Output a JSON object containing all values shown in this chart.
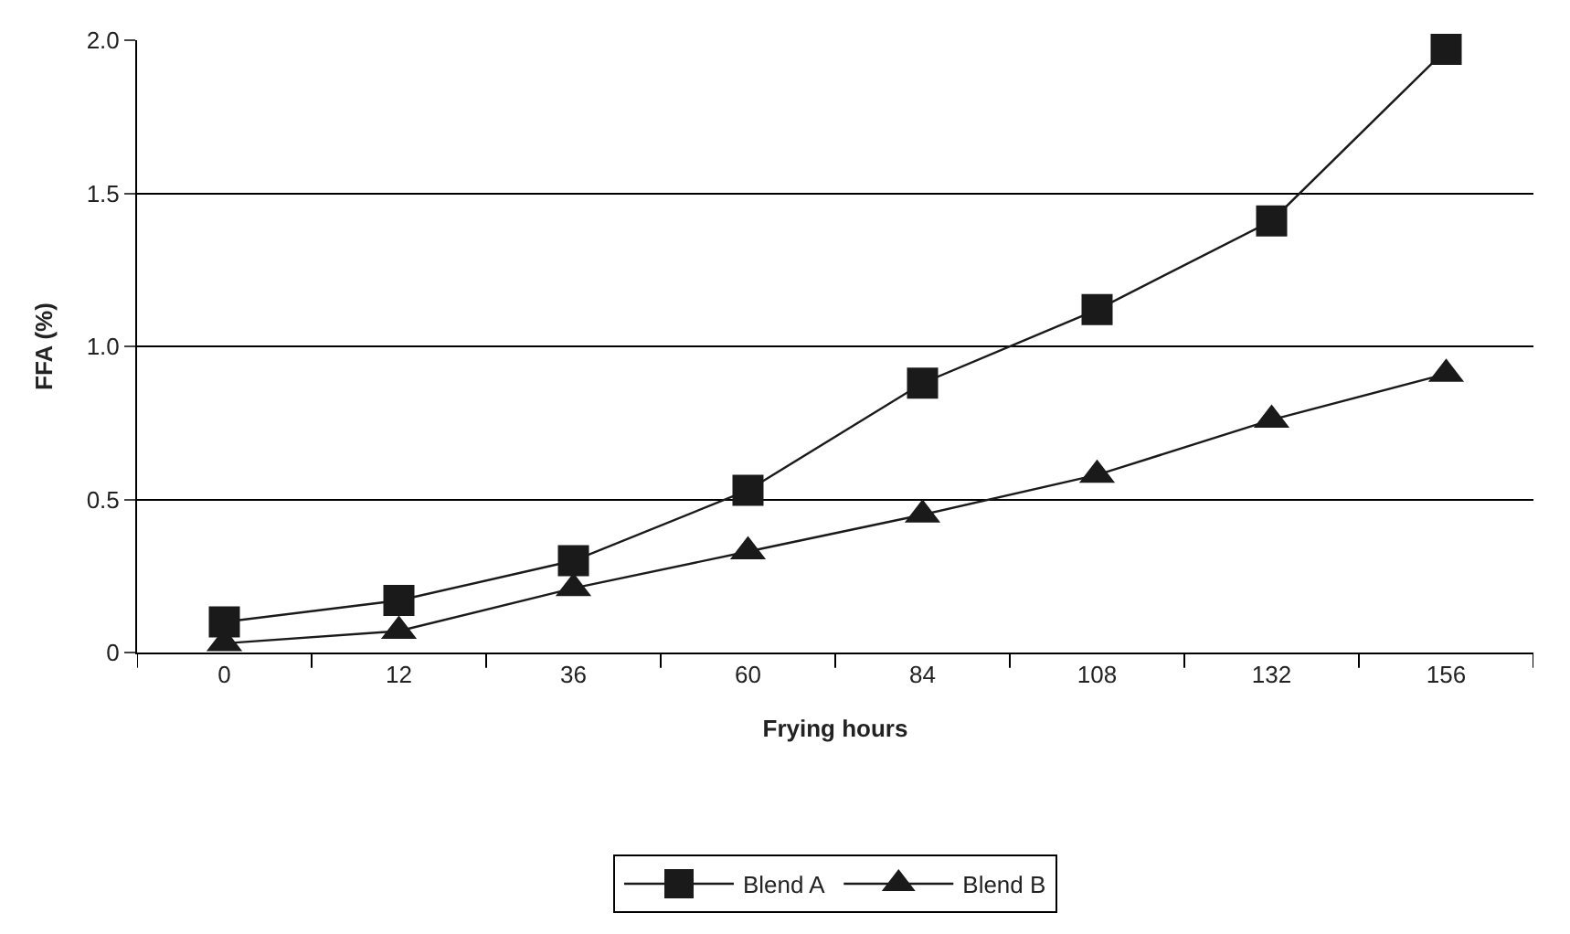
{
  "chart_data": {
    "type": "line",
    "xlabel": "Frying hours",
    "ylabel": "FFA (%)",
    "categories": [
      "0",
      "12",
      "36",
      "60",
      "84",
      "108",
      "132",
      "156"
    ],
    "series": [
      {
        "name": "Blend A",
        "color": "#1a1a1a",
        "marker": "square",
        "values": [
          0.1,
          0.17,
          0.3,
          0.53,
          0.88,
          1.12,
          1.41,
          1.97
        ]
      },
      {
        "name": "Blend B",
        "color": "#1a1a1a",
        "marker": "triangle",
        "values": [
          0.03,
          0.07,
          0.21,
          0.33,
          0.45,
          0.58,
          0.76,
          0.91
        ]
      }
    ],
    "ylim": [
      0,
      2.0
    ],
    "yticks": [
      0,
      {
        "value": 0.5,
        "label": "0.5"
      },
      {
        "value": 1.0,
        "label": "1.0"
      },
      {
        "value": 1.5,
        "label": "1.5"
      },
      {
        "value": 2.0,
        "label": "2.0"
      }
    ],
    "grid": "y",
    "legend": "bottom",
    "line_style": "solid"
  }
}
